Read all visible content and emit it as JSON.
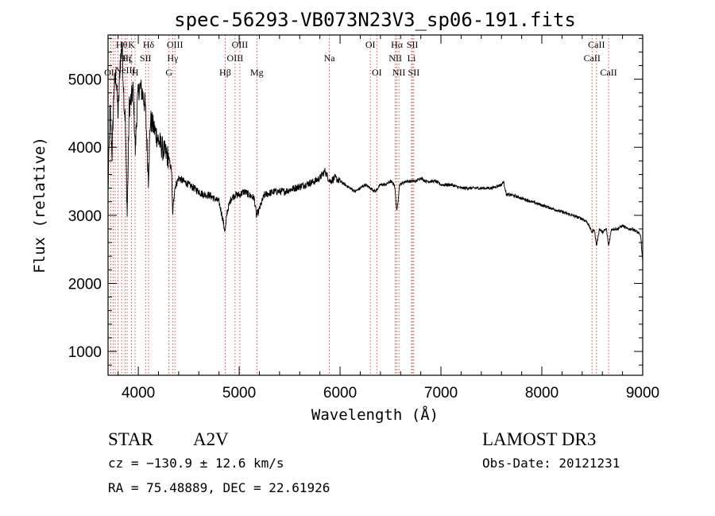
{
  "chart_data": {
    "type": "line",
    "title": "spec-56293-VB073N23V3_sp06-191.fits",
    "xlabel": "Wavelength (Å)",
    "ylabel": "Flux (relative)",
    "xlim": [
      3700,
      9000
    ],
    "ylim": [
      650,
      5650
    ],
    "xticks": [
      4000,
      5000,
      6000,
      7000,
      8000,
      9000
    ],
    "yticks": [
      1000,
      2000,
      3000,
      4000,
      5000
    ],
    "series": [
      {
        "name": "spectrum",
        "anchors": [
          [
            3700,
            3350
          ],
          [
            3720,
            4550
          ],
          [
            3740,
            3900
          ],
          [
            3760,
            4900
          ],
          [
            3780,
            5050
          ],
          [
            3800,
            4450
          ],
          [
            3820,
            5250
          ],
          [
            3840,
            5500
          ],
          [
            3860,
            4600
          ],
          [
            3870,
            4450
          ],
          [
            3890,
            3000
          ],
          [
            3910,
            4600
          ],
          [
            3930,
            4700
          ],
          [
            3950,
            4850
          ],
          [
            3970,
            3950
          ],
          [
            3990,
            4650
          ],
          [
            4010,
            4900
          ],
          [
            4040,
            4800
          ],
          [
            4070,
            4600
          ],
          [
            4100,
            3550
          ],
          [
            4120,
            4400
          ],
          [
            4150,
            4300
          ],
          [
            4200,
            4100
          ],
          [
            4250,
            3950
          ],
          [
            4300,
            3850
          ],
          [
            4330,
            3650
          ],
          [
            4340,
            3000
          ],
          [
            4360,
            3400
          ],
          [
            4400,
            3550
          ],
          [
            4450,
            3500
          ],
          [
            4500,
            3450
          ],
          [
            4550,
            3400
          ],
          [
            4600,
            3350
          ],
          [
            4650,
            3300
          ],
          [
            4700,
            3300
          ],
          [
            4750,
            3250
          ],
          [
            4800,
            3200
          ],
          [
            4830,
            3000
          ],
          [
            4861,
            2750
          ],
          [
            4880,
            3050
          ],
          [
            4920,
            3250
          ],
          [
            4960,
            3300
          ],
          [
            5000,
            3300
          ],
          [
            5050,
            3350
          ],
          [
            5100,
            3300
          ],
          [
            5150,
            3250
          ],
          [
            5170,
            3000
          ],
          [
            5190,
            3050
          ],
          [
            5250,
            3300
          ],
          [
            5350,
            3350
          ],
          [
            5450,
            3350
          ],
          [
            5550,
            3400
          ],
          [
            5650,
            3450
          ],
          [
            5750,
            3500
          ],
          [
            5800,
            3550
          ],
          [
            5850,
            3650
          ],
          [
            5900,
            3500
          ],
          [
            5950,
            3550
          ],
          [
            6000,
            3500
          ],
          [
            6050,
            3450
          ],
          [
            6100,
            3400
          ],
          [
            6150,
            3350
          ],
          [
            6200,
            3400
          ],
          [
            6250,
            3450
          ],
          [
            6300,
            3400
          ],
          [
            6350,
            3350
          ],
          [
            6400,
            3450
          ],
          [
            6450,
            3450
          ],
          [
            6500,
            3500
          ],
          [
            6540,
            3450
          ],
          [
            6563,
            3050
          ],
          [
            6590,
            3450
          ],
          [
            6650,
            3500
          ],
          [
            6700,
            3500
          ],
          [
            6750,
            3500
          ],
          [
            6800,
            3550
          ],
          [
            6850,
            3500
          ],
          [
            6900,
            3500
          ],
          [
            6950,
            3500
          ],
          [
            7000,
            3450
          ],
          [
            7100,
            3450
          ],
          [
            7200,
            3400
          ],
          [
            7300,
            3400
          ],
          [
            7400,
            3400
          ],
          [
            7500,
            3400
          ],
          [
            7600,
            3450
          ],
          [
            7620,
            3500
          ],
          [
            7650,
            3300
          ],
          [
            7700,
            3300
          ],
          [
            7800,
            3250
          ],
          [
            7900,
            3200
          ],
          [
            8000,
            3150
          ],
          [
            8100,
            3100
          ],
          [
            8200,
            3050
          ],
          [
            8300,
            3000
          ],
          [
            8400,
            2950
          ],
          [
            8450,
            2900
          ],
          [
            8498,
            2750
          ],
          [
            8520,
            2800
          ],
          [
            8542,
            2550
          ],
          [
            8570,
            2800
          ],
          [
            8600,
            2750
          ],
          [
            8640,
            2800
          ],
          [
            8662,
            2550
          ],
          [
            8690,
            2800
          ],
          [
            8750,
            2800
          ],
          [
            8800,
            2850
          ],
          [
            8850,
            2800
          ],
          [
            8900,
            2800
          ],
          [
            8950,
            2750
          ],
          [
            8980,
            2700
          ],
          [
            9000,
            2300
          ]
        ]
      }
    ],
    "line_markers": [
      {
        "wavelength": 3727,
        "labels": [
          "OII"
        ],
        "row": 3
      },
      {
        "wavelength": 3750,
        "labels": [],
        "row": 0
      },
      {
        "wavelength": 3771,
        "labels": [],
        "row": 0
      },
      {
        "wavelength": 3798,
        "labels": [],
        "row": 0
      },
      {
        "wavelength": 3835,
        "labels": [
          "Hθ"
        ],
        "row": 1
      },
      {
        "wavelength": 3869,
        "labels": [
          "Hη",
          "NeIII"
        ],
        "row": 2
      },
      {
        "wavelength": 3889,
        "labels": [
          "Hζ"
        ],
        "row": 2
      },
      {
        "wavelength": 3933,
        "labels": [
          "K"
        ],
        "row": 1
      },
      {
        "wavelength": 3968,
        "labels": [
          "H"
        ],
        "row": 3
      },
      {
        "wavelength": 4072,
        "labels": [
          "SII"
        ],
        "row": 2
      },
      {
        "wavelength": 4102,
        "labels": [
          "Hδ"
        ],
        "row": 1
      },
      {
        "wavelength": 4304,
        "labels": [
          "G"
        ],
        "row": 3
      },
      {
        "wavelength": 4341,
        "labels": [
          "Hγ"
        ],
        "row": 2
      },
      {
        "wavelength": 4363,
        "labels": [
          "OIII"
        ],
        "row": 1
      },
      {
        "wavelength": 4861,
        "labels": [
          "Hβ"
        ],
        "row": 3
      },
      {
        "wavelength": 4959,
        "labels": [
          "OIII"
        ],
        "row": 2
      },
      {
        "wavelength": 5007,
        "labels": [
          "OIII"
        ],
        "row": 1
      },
      {
        "wavelength": 5175,
        "labels": [
          "Mg"
        ],
        "row": 3
      },
      {
        "wavelength": 5894,
        "labels": [
          "Na"
        ],
        "row": 2
      },
      {
        "wavelength": 6300,
        "labels": [
          "OI"
        ],
        "row": 1
      },
      {
        "wavelength": 6364,
        "labels": [
          "OI"
        ],
        "row": 3
      },
      {
        "wavelength": 6548,
        "labels": [
          "NII"
        ],
        "row": 2
      },
      {
        "wavelength": 6563,
        "labels": [
          "Hα"
        ],
        "row": 1
      },
      {
        "wavelength": 6583,
        "labels": [
          "NII"
        ],
        "row": 3
      },
      {
        "wavelength": 6717,
        "labels": [
          "SII"
        ],
        "row": 1
      },
      {
        "wavelength": 6731,
        "labels": [
          "SII"
        ],
        "row": 3
      },
      {
        "wavelength": 6708,
        "labels": [
          "Li"
        ],
        "row": 2
      },
      {
        "wavelength": 8498,
        "labels": [
          "CaII"
        ],
        "row": 2
      },
      {
        "wavelength": 8542,
        "labels": [
          "CaII"
        ],
        "row": 1
      },
      {
        "wavelength": 8662,
        "labels": [
          "CaII"
        ],
        "row": 3
      }
    ],
    "colors": {
      "spectrum": "#000000",
      "markers": "#cc2222",
      "axes": "#000000"
    }
  },
  "info": {
    "object_class": "STAR",
    "subclass": "A2V",
    "survey": "LAMOST DR3",
    "cz": "cz = −130.9 ± 12.6 km/s",
    "obs_date": "Obs-Date: 20121231",
    "coords": "RA =  75.48889, DEC =  22.61926"
  }
}
